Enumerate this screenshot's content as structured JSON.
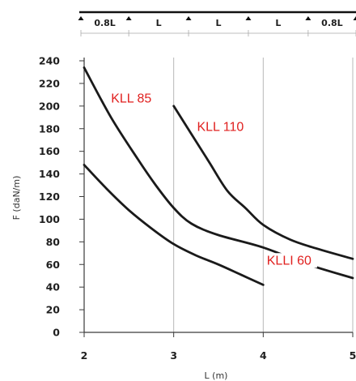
{
  "chart_data": {
    "type": "line",
    "xlabel": "L (m)",
    "ylabel": "F (daN/m)",
    "xlim": [
      2,
      5
    ],
    "ylim": [
      0,
      240
    ],
    "x_ticks": [
      2,
      3,
      4,
      5
    ],
    "y_ticks": [
      0,
      20,
      40,
      60,
      80,
      100,
      120,
      140,
      160,
      180,
      200,
      220,
      240
    ],
    "grid": "vertical",
    "span_diagram": {
      "spans": [
        "0.8L",
        "L",
        "L",
        "L",
        "0.8L"
      ]
    },
    "series": [
      {
        "name": "KLL 85",
        "x": [
          2.0,
          2.3,
          2.6,
          2.8,
          3.0,
          3.2,
          3.5,
          4.0,
          4.5,
          5.0
        ],
        "y": [
          234,
          190,
          153,
          130,
          110,
          96,
          86,
          75,
          60,
          48
        ]
      },
      {
        "name": "KLL 110",
        "x": [
          3.0,
          3.2,
          3.4,
          3.6,
          3.8,
          4.0,
          4.3,
          4.6,
          5.0
        ],
        "y": [
          200,
          175,
          150,
          125,
          110,
          95,
          82,
          74,
          65
        ]
      },
      {
        "name": "KLLI 60",
        "x": [
          2.0,
          2.25,
          2.5,
          2.75,
          3.0,
          3.25,
          3.5,
          3.75,
          4.0
        ],
        "y": [
          148,
          127,
          108,
          92,
          78,
          68,
          60,
          51,
          42
        ]
      }
    ],
    "colors": {
      "curve": "#1a1a1a",
      "label": "#e0201f",
      "grid": "#b8b8b8",
      "axis": "#3a3a3a"
    }
  }
}
